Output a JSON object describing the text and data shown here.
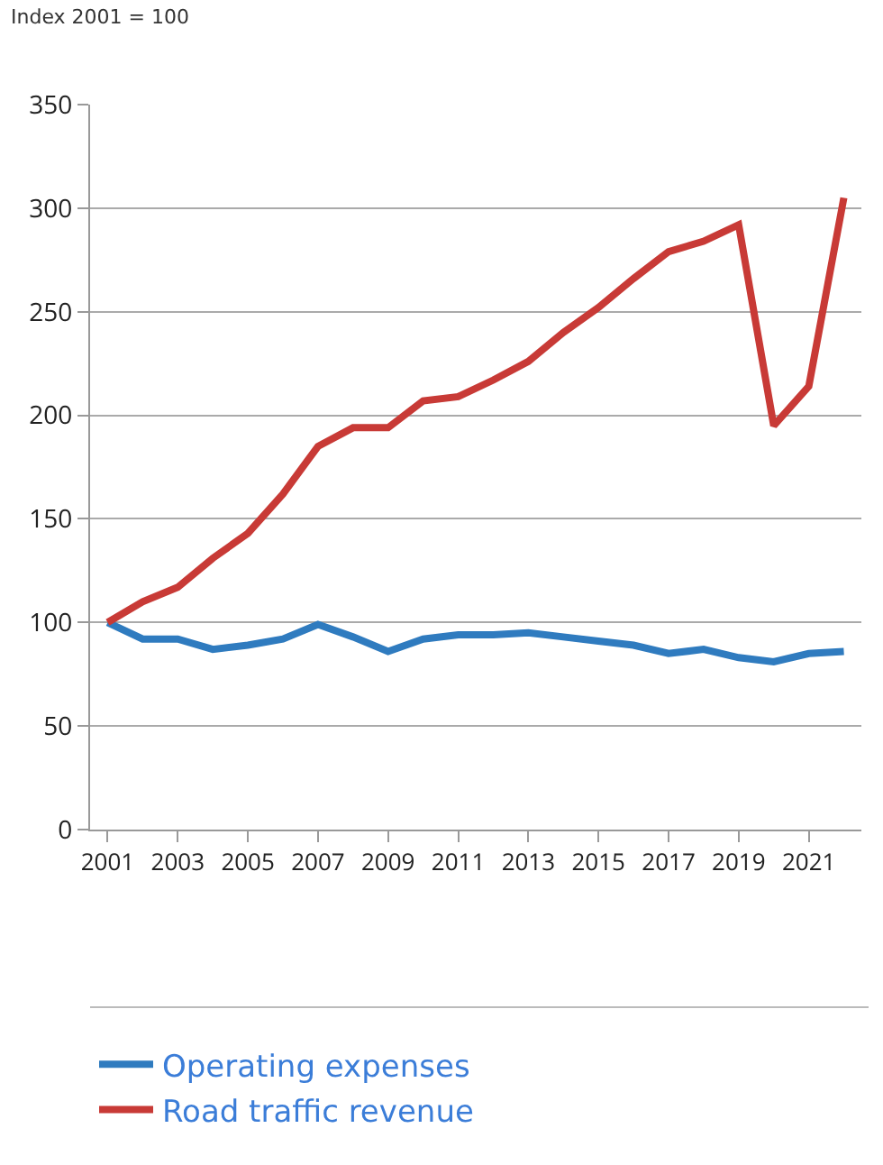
{
  "chart_data": {
    "type": "line",
    "ylabel": "Index 2001 = 100",
    "categories": [
      "2001",
      null,
      "2003",
      null,
      "2005",
      null,
      "2007",
      null,
      "2009",
      null,
      "2011",
      null,
      "2013",
      null,
      "2015",
      null,
      "2017",
      null,
      "2019",
      null,
      "2021",
      null
    ],
    "series": [
      {
        "name": "Operating expenses",
        "color": "#2f7bbf",
        "values": [
          100,
          92,
          92,
          87,
          89,
          92,
          99,
          93,
          86,
          92,
          94,
          94,
          95,
          93,
          91,
          89,
          85,
          87,
          83,
          81,
          85,
          86
        ]
      },
      {
        "name": "Road traffic revenue",
        "color": "#c83a36",
        "values": [
          100,
          110,
          117,
          131,
          143,
          162,
          185,
          194,
          194,
          207,
          209,
          217,
          226,
          240,
          252,
          266,
          279,
          284,
          292,
          195,
          214,
          305
        ]
      }
    ],
    "ylim": [
      0,
      350
    ],
    "yticks": [
      0,
      50,
      100,
      150,
      200,
      250,
      300,
      350
    ],
    "grid": "y",
    "legend": "bottom",
    "line_style": "solid",
    "marker": "none"
  }
}
